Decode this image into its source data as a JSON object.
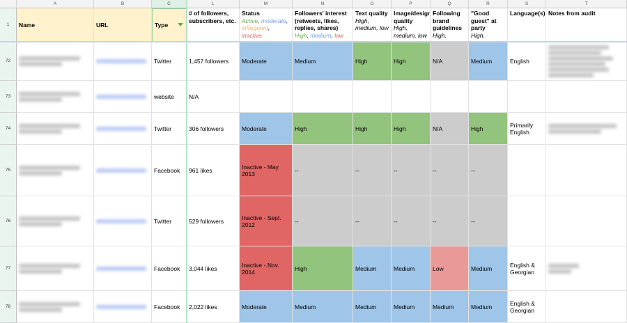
{
  "colors": {
    "blue": "#9fc5e8",
    "green": "#93c47d",
    "gray": "#cccccc",
    "red": "#e06666",
    "lightred": "#ea9999",
    "yellow": "#fff2cc",
    "active": "#6aa84f",
    "moderate": "#6d9eeb",
    "infrequent": "#f6b26b",
    "inactive": "#e06666"
  },
  "columns": [
    "A",
    "B",
    "C",
    "L",
    "M",
    "N",
    "O",
    "P",
    "Q",
    "R",
    "S",
    "T"
  ],
  "header_row": {
    "num": "1",
    "name": "Name",
    "url": "URL",
    "type": "Type",
    "followers": "# of followers, subscribers, etc.",
    "status": "Status",
    "status_legend": [
      {
        "t": "Active",
        "c": "active"
      },
      {
        "t": ", ",
        "c": ""
      },
      {
        "t": "moderate",
        "c": "moderate"
      },
      {
        "t": ", ",
        "c": ""
      },
      {
        "t": "infrequent",
        "c": "infrequent"
      },
      {
        "t": ", ",
        "c": ""
      },
      {
        "t": "inactive",
        "c": "inactive"
      }
    ],
    "interest": "Followers' interest (retweets, likes, replies, shares)",
    "interest_legend": [
      {
        "t": "High",
        "c": "active"
      },
      {
        "t": ", ",
        "c": ""
      },
      {
        "t": "medium",
        "c": "moderate"
      },
      {
        "t": ", ",
        "c": ""
      },
      {
        "t": "low",
        "c": "inactive"
      }
    ],
    "text_quality": "Text quality",
    "image_quality": "Image/design quality",
    "brand": "Following brand guidelines",
    "guest": "\"Good guest\" at party",
    "scale": "High, medium, low",
    "language": "Language(s)",
    "notes": "Notes from audit"
  },
  "rows": [
    {
      "num": "72",
      "type": "Twitter",
      "followers": "1,457 followers",
      "status": "Moderate",
      "status_fill": "blue",
      "interest": "Medium",
      "interest_fill": "blue",
      "text": "High",
      "text_fill": "green",
      "image": "High",
      "image_fill": "green",
      "brand": "N/A",
      "brand_fill": "gray",
      "guest": "Medium",
      "guest_fill": "blue",
      "language": "English"
    },
    {
      "num": "73",
      "type": "website",
      "followers": "N/A",
      "status": "",
      "status_fill": "",
      "interest": "",
      "interest_fill": "",
      "text": "",
      "text_fill": "",
      "image": "",
      "image_fill": "",
      "brand": "",
      "brand_fill": "",
      "guest": "",
      "guest_fill": "",
      "language": ""
    },
    {
      "num": "74",
      "type": "Twitter",
      "followers": "306 followers",
      "status": "Moderate",
      "status_fill": "blue",
      "interest": "High",
      "interest_fill": "green",
      "text": "High",
      "text_fill": "green",
      "image": "High",
      "image_fill": "green",
      "brand": "N/A",
      "brand_fill": "gray",
      "guest": "High",
      "guest_fill": "green",
      "language": "Primarily English"
    },
    {
      "num": "75",
      "type": "Facebook",
      "followers": "961 likes",
      "status": "Inactive - May 2013",
      "status_fill": "red",
      "interest": "--",
      "interest_fill": "gray",
      "text": "--",
      "text_fill": "gray",
      "image": "--",
      "image_fill": "gray",
      "brand": "--",
      "brand_fill": "gray",
      "guest": "--",
      "guest_fill": "gray",
      "language": ""
    },
    {
      "num": "76",
      "type": "Twitter",
      "followers": "529 followers",
      "status": "Inactive - Sept. 2012",
      "status_fill": "red",
      "interest": "--",
      "interest_fill": "gray",
      "text": "--",
      "text_fill": "gray",
      "image": "--",
      "image_fill": "gray",
      "brand": "--",
      "brand_fill": "gray",
      "guest": "--",
      "guest_fill": "gray",
      "language": ""
    },
    {
      "num": "77",
      "type": "Facebook",
      "followers": "3,044 likes",
      "status": "Inactive - Nov. 2014",
      "status_fill": "red",
      "interest": "High",
      "interest_fill": "green",
      "text": "Medium",
      "text_fill": "blue",
      "image": "Medium",
      "image_fill": "blue",
      "brand": "Low",
      "brand_fill": "lightred",
      "guest": "Medium",
      "guest_fill": "blue",
      "language": "English & Georgian"
    },
    {
      "num": "78",
      "type": "Facebook",
      "followers": "2,022 likes",
      "status": "Moderate",
      "status_fill": "blue",
      "interest": "Medium",
      "interest_fill": "blue",
      "text": "Medium",
      "text_fill": "blue",
      "image": "Medium",
      "image_fill": "blue",
      "brand": "Medium",
      "brand_fill": "blue",
      "guest": "Medium",
      "guest_fill": "blue",
      "language": "English & Georgian"
    }
  ]
}
